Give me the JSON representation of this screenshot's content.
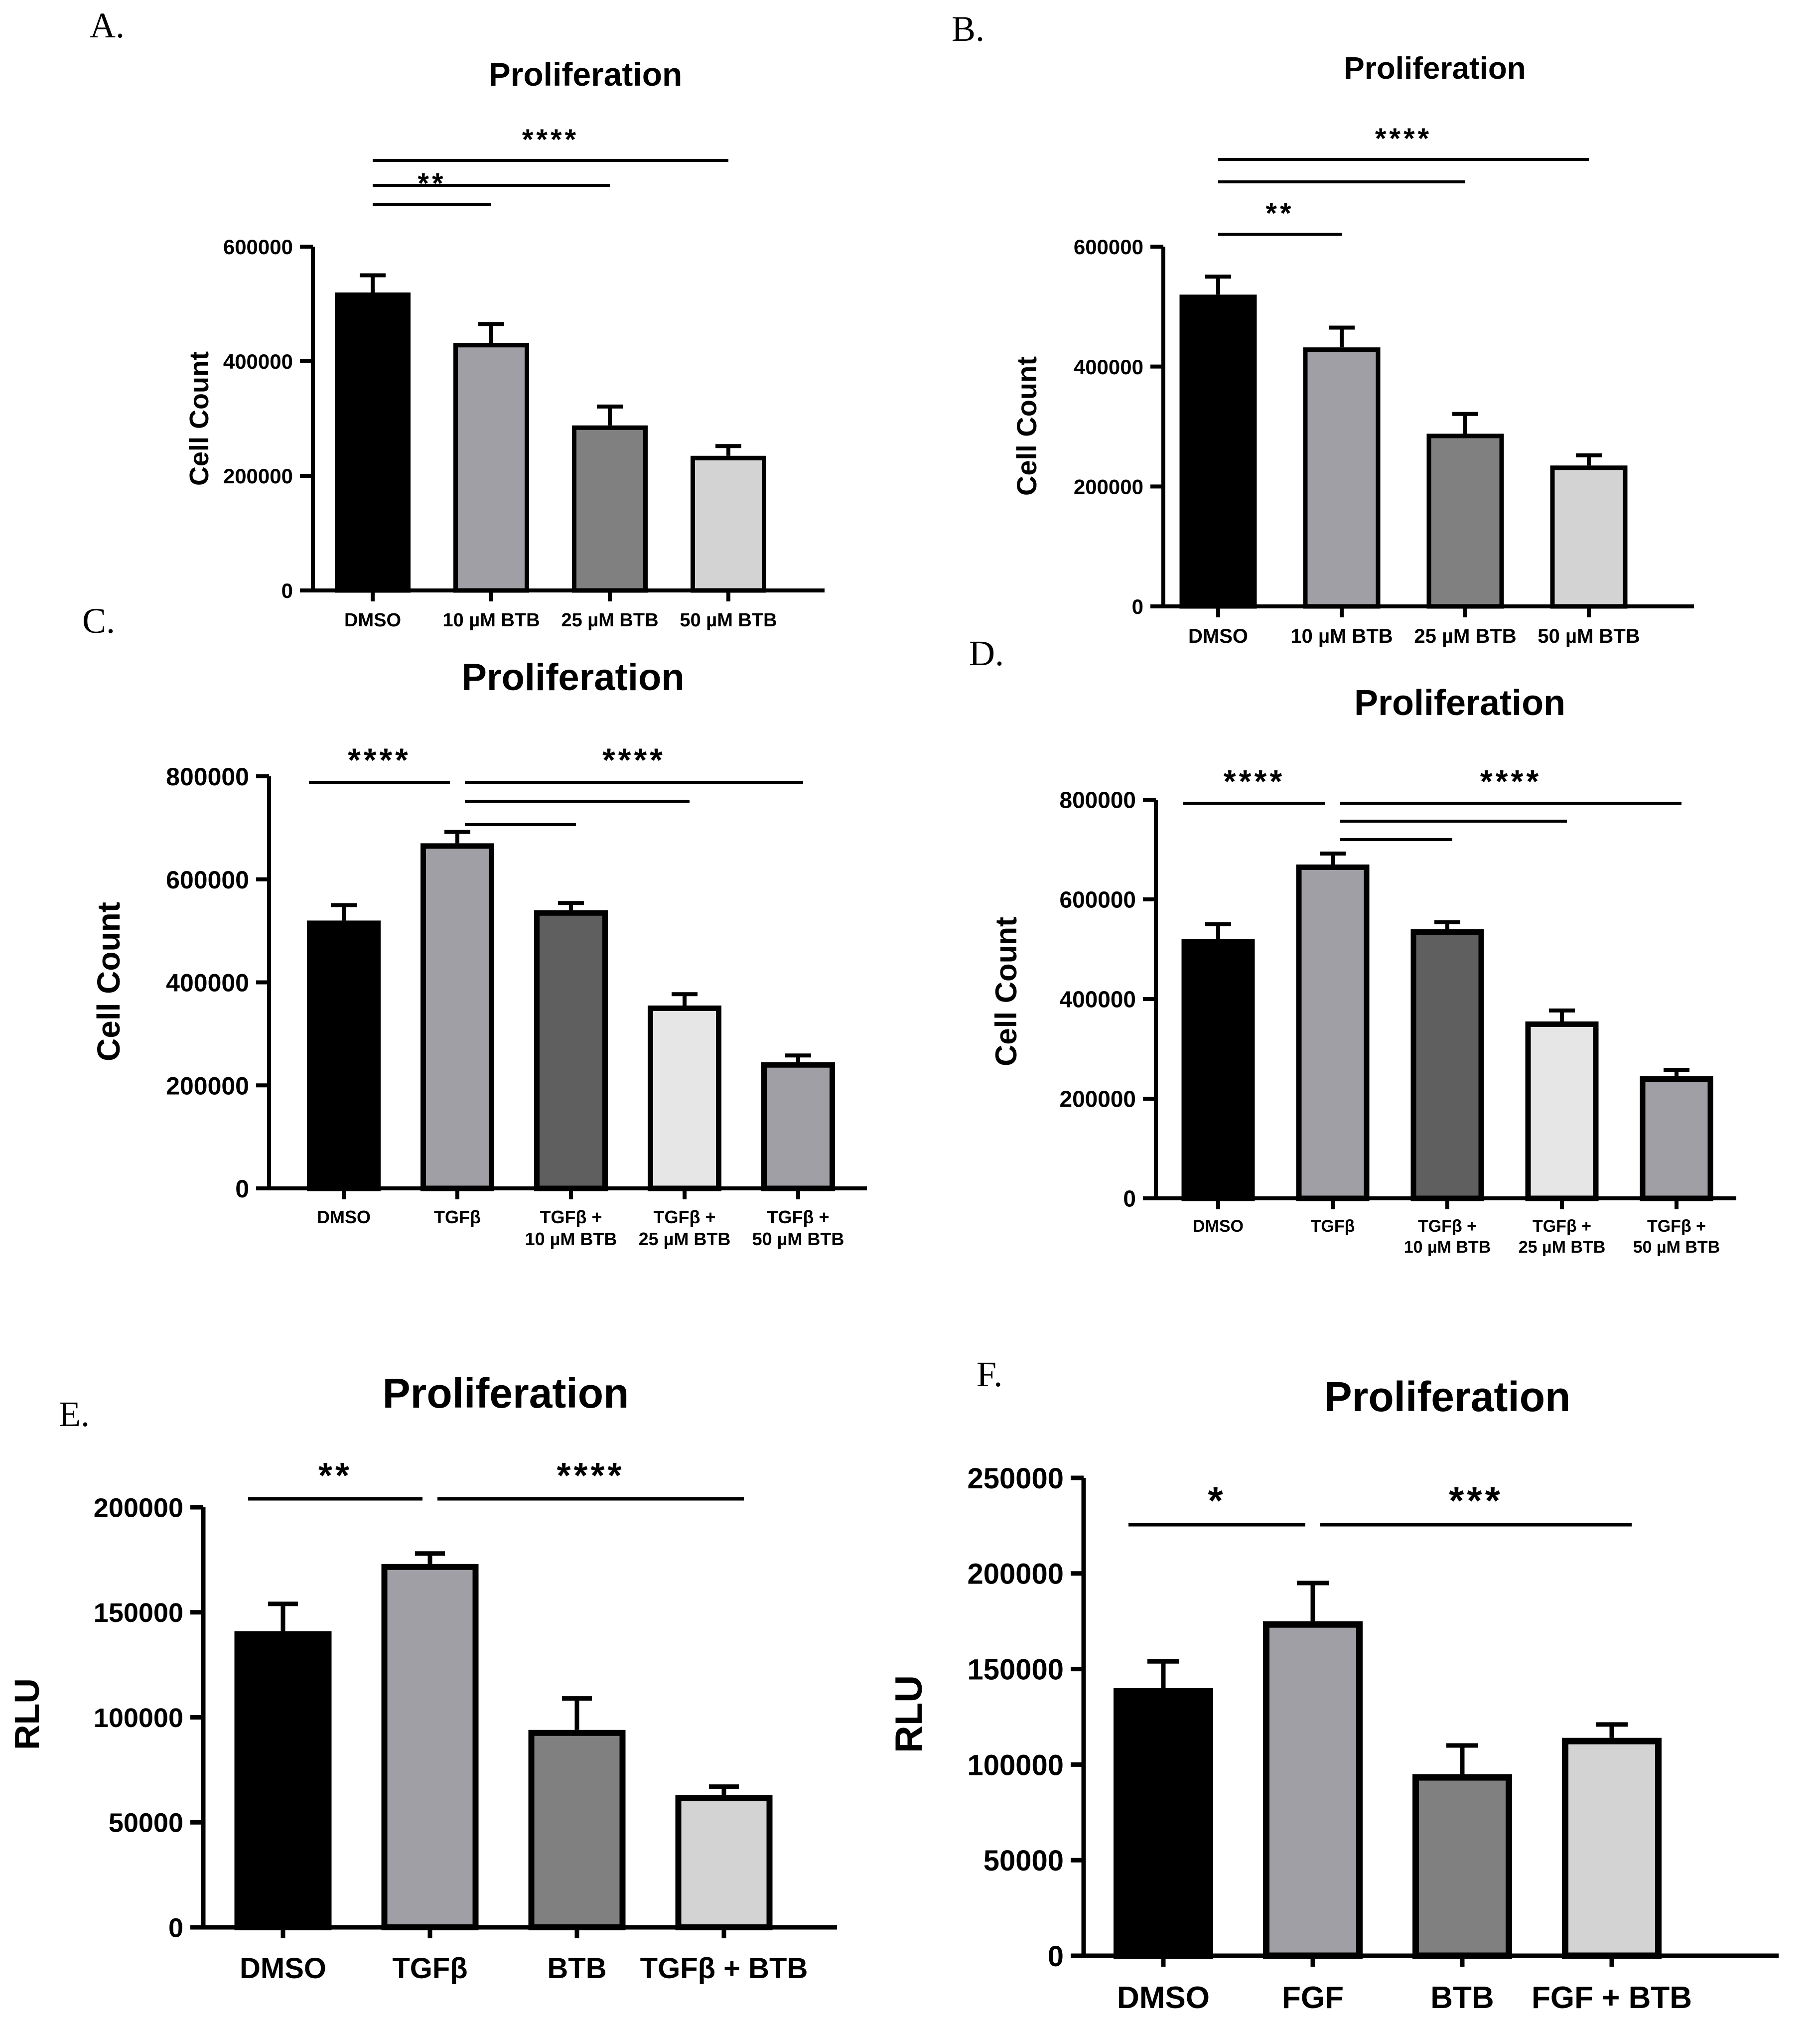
{
  "chart_data": [
    {
      "panel": "A.",
      "type": "bar",
      "title": "Proliferation",
      "ylabel": "Cell Count",
      "xlabel": "",
      "ylim": [
        0,
        600000
      ],
      "yticks": [
        0,
        200000,
        400000,
        600000
      ],
      "ytick_labels": [
        "0",
        "200000",
        "400000",
        "600000"
      ],
      "categories": [
        [
          "DMSO"
        ],
        [
          "10 µM BTB"
        ],
        [
          "25 µM BTB"
        ],
        [
          "50 µM BTB"
        ]
      ],
      "values": [
        520000,
        432000,
        288000,
        235000
      ],
      "errors": [
        30000,
        33000,
        33000,
        17000
      ],
      "colors": [
        "#000000",
        "#a09fa5",
        "#808080",
        "#d3d3d3"
      ],
      "comparisons": [
        {
          "from": 0,
          "to": 1,
          "label": "**",
          "level": 1
        },
        {
          "from": 0,
          "to": 2,
          "label": "",
          "level": 2
        },
        {
          "from": 0,
          "to": 3,
          "label": "****",
          "level": 3
        }
      ]
    },
    {
      "panel": "B.",
      "type": "bar",
      "title": "Proliferation",
      "ylabel": "Cell Count",
      "xlabel": "",
      "ylim": [
        0,
        600000
      ],
      "yticks": [
        0,
        200000,
        400000,
        600000
      ],
      "ytick_labels": [
        "0",
        "200000",
        "400000",
        "600000"
      ],
      "categories": [
        [
          "DMSO"
        ],
        [
          "10 µM BTB"
        ],
        [
          "25 µM BTB"
        ],
        [
          "50 µM BTB"
        ]
      ],
      "values": [
        520000,
        432000,
        288000,
        235000
      ],
      "errors": [
        30000,
        33000,
        33000,
        17000
      ],
      "colors": [
        "#000000",
        "#a09fa5",
        "#808080",
        "#d3d3d3"
      ],
      "comparisons": [
        {
          "from": 0,
          "to": 1,
          "label": "**",
          "level": 1
        },
        {
          "from": 0,
          "to": 2,
          "label": "",
          "level": 2
        },
        {
          "from": 0,
          "to": 3,
          "label": "****",
          "level": 3
        }
      ]
    },
    {
      "panel": "C.",
      "type": "bar",
      "title": "Proliferation",
      "ylabel": "Cell Count",
      "xlabel": "",
      "ylim": [
        0,
        800000
      ],
      "yticks": [
        0,
        200000,
        400000,
        600000,
        800000
      ],
      "ytick_labels": [
        "0",
        "200000",
        "400000",
        "600000",
        "800000"
      ],
      "categories": [
        [
          "DMSO"
        ],
        [
          "TGFβ"
        ],
        [
          "TGFβ +",
          "10 µM BTB"
        ],
        [
          "TGFβ +",
          "25 µM BTB"
        ],
        [
          "TGFβ +",
          "50 µM BTB"
        ]
      ],
      "values": [
        520000,
        670000,
        540000,
        355000,
        245000
      ],
      "errors": [
        30000,
        22000,
        14000,
        22000,
        13000
      ],
      "colors": [
        "#000000",
        "#a09fa5",
        "#5f5f5f",
        "#e6e6e6",
        "#a09fa5"
      ],
      "comparisons": [
        {
          "from": 0,
          "to": 1,
          "label": "****",
          "level": 3
        },
        {
          "from": 1,
          "to": 2,
          "label": "",
          "level": 1
        },
        {
          "from": 1,
          "to": 3,
          "label": "",
          "level": 2
        },
        {
          "from": 1,
          "to": 4,
          "label": "****",
          "level": 3
        }
      ]
    },
    {
      "panel": "D.",
      "type": "bar",
      "title": "Proliferation",
      "ylabel": "Cell Count",
      "xlabel": "",
      "ylim": [
        0,
        800000
      ],
      "yticks": [
        0,
        200000,
        400000,
        600000,
        800000
      ],
      "ytick_labels": [
        "0",
        "200000",
        "400000",
        "600000",
        "800000"
      ],
      "categories": [
        [
          "DMSO"
        ],
        [
          "TGFβ"
        ],
        [
          "TGFβ +",
          "10 µM BTB"
        ],
        [
          "TGFβ +",
          "25 µM BTB"
        ],
        [
          "TGFβ +",
          "50 µM BTB"
        ]
      ],
      "values": [
        520000,
        670000,
        540000,
        355000,
        245000
      ],
      "errors": [
        30000,
        22000,
        14000,
        22000,
        13000
      ],
      "colors": [
        "#000000",
        "#a09fa5",
        "#5f5f5f",
        "#e6e6e6",
        "#a09fa5"
      ],
      "comparisons": [
        {
          "from": 0,
          "to": 1,
          "label": "****",
          "level": 3
        },
        {
          "from": 1,
          "to": 2,
          "label": "",
          "level": 1
        },
        {
          "from": 1,
          "to": 3,
          "label": "",
          "level": 2
        },
        {
          "from": 1,
          "to": 4,
          "label": "****",
          "level": 3
        }
      ]
    },
    {
      "panel": "E.",
      "type": "bar",
      "title": "Proliferation",
      "ylabel": "RLU",
      "xlabel": "",
      "ylim": [
        0,
        200000
      ],
      "yticks": [
        0,
        50000,
        100000,
        150000,
        200000
      ],
      "ytick_labels": [
        "0",
        "50000",
        "100000",
        "150000",
        "200000"
      ],
      "categories": [
        [
          "DMSO"
        ],
        [
          "TGFβ"
        ],
        [
          "BTB"
        ],
        [
          "TGFβ + BTB"
        ]
      ],
      "values": [
        141000,
        173000,
        94000,
        63000
      ],
      "errors": [
        13000,
        5000,
        15000,
        4000
      ],
      "colors": [
        "#000000",
        "#a09fa5",
        "#808080",
        "#d3d3d3"
      ],
      "comparisons": [
        {
          "from": 0,
          "to": 1,
          "label": "**",
          "level": 1
        },
        {
          "from": 1,
          "to": 3,
          "label": "****",
          "level": 1
        }
      ]
    },
    {
      "panel": "F.",
      "type": "bar",
      "title": "Proliferation",
      "ylabel": "RLU",
      "xlabel": "",
      "ylim": [
        0,
        250000
      ],
      "yticks": [
        0,
        50000,
        100000,
        150000,
        200000,
        250000
      ],
      "ytick_labels": [
        "0",
        "50000",
        "100000",
        "150000",
        "200000",
        "250000"
      ],
      "categories": [
        [
          "DMSO"
        ],
        [
          "FGF"
        ],
        [
          "BTB"
        ],
        [
          "FGF + BTB"
        ]
      ],
      "values": [
        140000,
        175000,
        95000,
        114000
      ],
      "errors": [
        14000,
        20000,
        15000,
        7000
      ],
      "colors": [
        "#000000",
        "#a09fa5",
        "#808080",
        "#d3d3d3"
      ],
      "comparisons": [
        {
          "from": 0,
          "to": 1,
          "label": "*",
          "level": 1
        },
        {
          "from": 1,
          "to": 3,
          "label": "***",
          "level": 1
        }
      ]
    }
  ]
}
